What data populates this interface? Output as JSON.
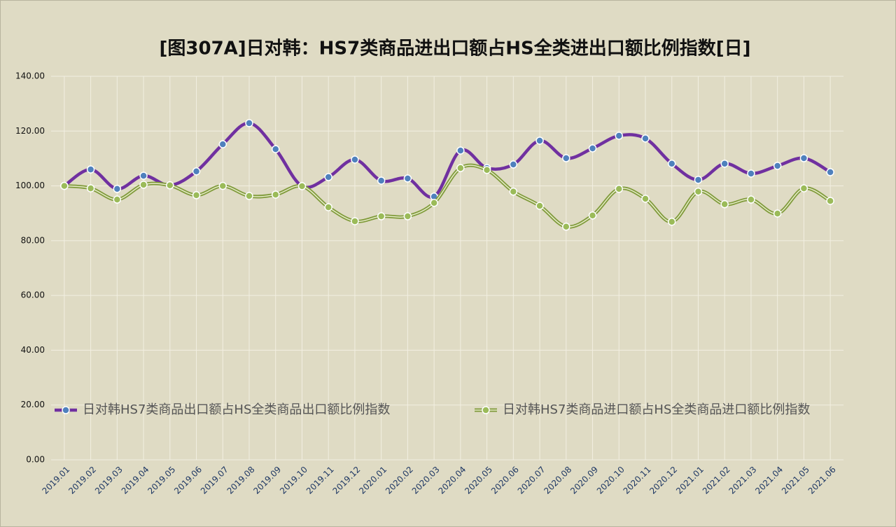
{
  "chart_data": {
    "type": "line",
    "title": "[图307A]日对韩：HS7类商品进出口额占HS全类进出口额比例指数[日]",
    "categories": [
      "2019.01",
      "2019.02",
      "2019.03",
      "2019.04",
      "2019.05",
      "2019.06",
      "2019.07",
      "2019.08",
      "2019.09",
      "2019.10",
      "2019.11",
      "2019.12",
      "2020.01",
      "2020.02",
      "2020.03",
      "2020.04",
      "2020.05",
      "2020.06",
      "2020.07",
      "2020.08",
      "2020.09",
      "2020.10",
      "2020.11",
      "2020.12",
      "2021.01",
      "2021.02",
      "2021.03",
      "2021.04",
      "2021.05",
      "2021.06"
    ],
    "series": [
      {
        "name": "日对韩HS7类商品出口额占HS全类商品出口额比例指数",
        "color": "#7030a0",
        "marker_color": "#4f81bd",
        "values": [
          100.0,
          106.0,
          98.9,
          103.7,
          100.2,
          105.3,
          115.2,
          122.9,
          113.4,
          99.9,
          103.2,
          109.6,
          101.9,
          102.7,
          96.1,
          112.9,
          106.5,
          107.8,
          116.5,
          110.1,
          113.7,
          118.3,
          117.3,
          108.1,
          102.2,
          108.1,
          104.5,
          107.3,
          110.1,
          105.0
        ]
      },
      {
        "name": "日对韩HS7类商品进口额占HS全类商品进口额比例指数",
        "color": "#7f9a3a",
        "marker_color": "#9bbb59",
        "values": [
          100.0,
          99.1,
          95.0,
          100.4,
          100.2,
          96.6,
          100.0,
          96.3,
          96.8,
          99.9,
          92.2,
          87.1,
          88.9,
          88.9,
          93.8,
          106.5,
          105.8,
          97.9,
          92.7,
          85.1,
          89.2,
          98.9,
          95.3,
          86.9,
          97.9,
          93.3,
          95.0,
          89.9,
          99.1,
          94.5
        ]
      }
    ],
    "ylim": [
      0,
      140
    ],
    "yticks": [
      {
        "value": 0,
        "label": "0.00"
      },
      {
        "value": 20,
        "label": "20.00"
      },
      {
        "value": 40,
        "label": "40.00"
      },
      {
        "value": 60,
        "label": "60.00"
      },
      {
        "value": 80,
        "label": "80.00"
      },
      {
        "value": 100,
        "label": "100.00"
      },
      {
        "value": 120,
        "label": "120.00"
      },
      {
        "value": 140,
        "label": "140.00"
      }
    ],
    "grid": true,
    "smooth": true
  }
}
